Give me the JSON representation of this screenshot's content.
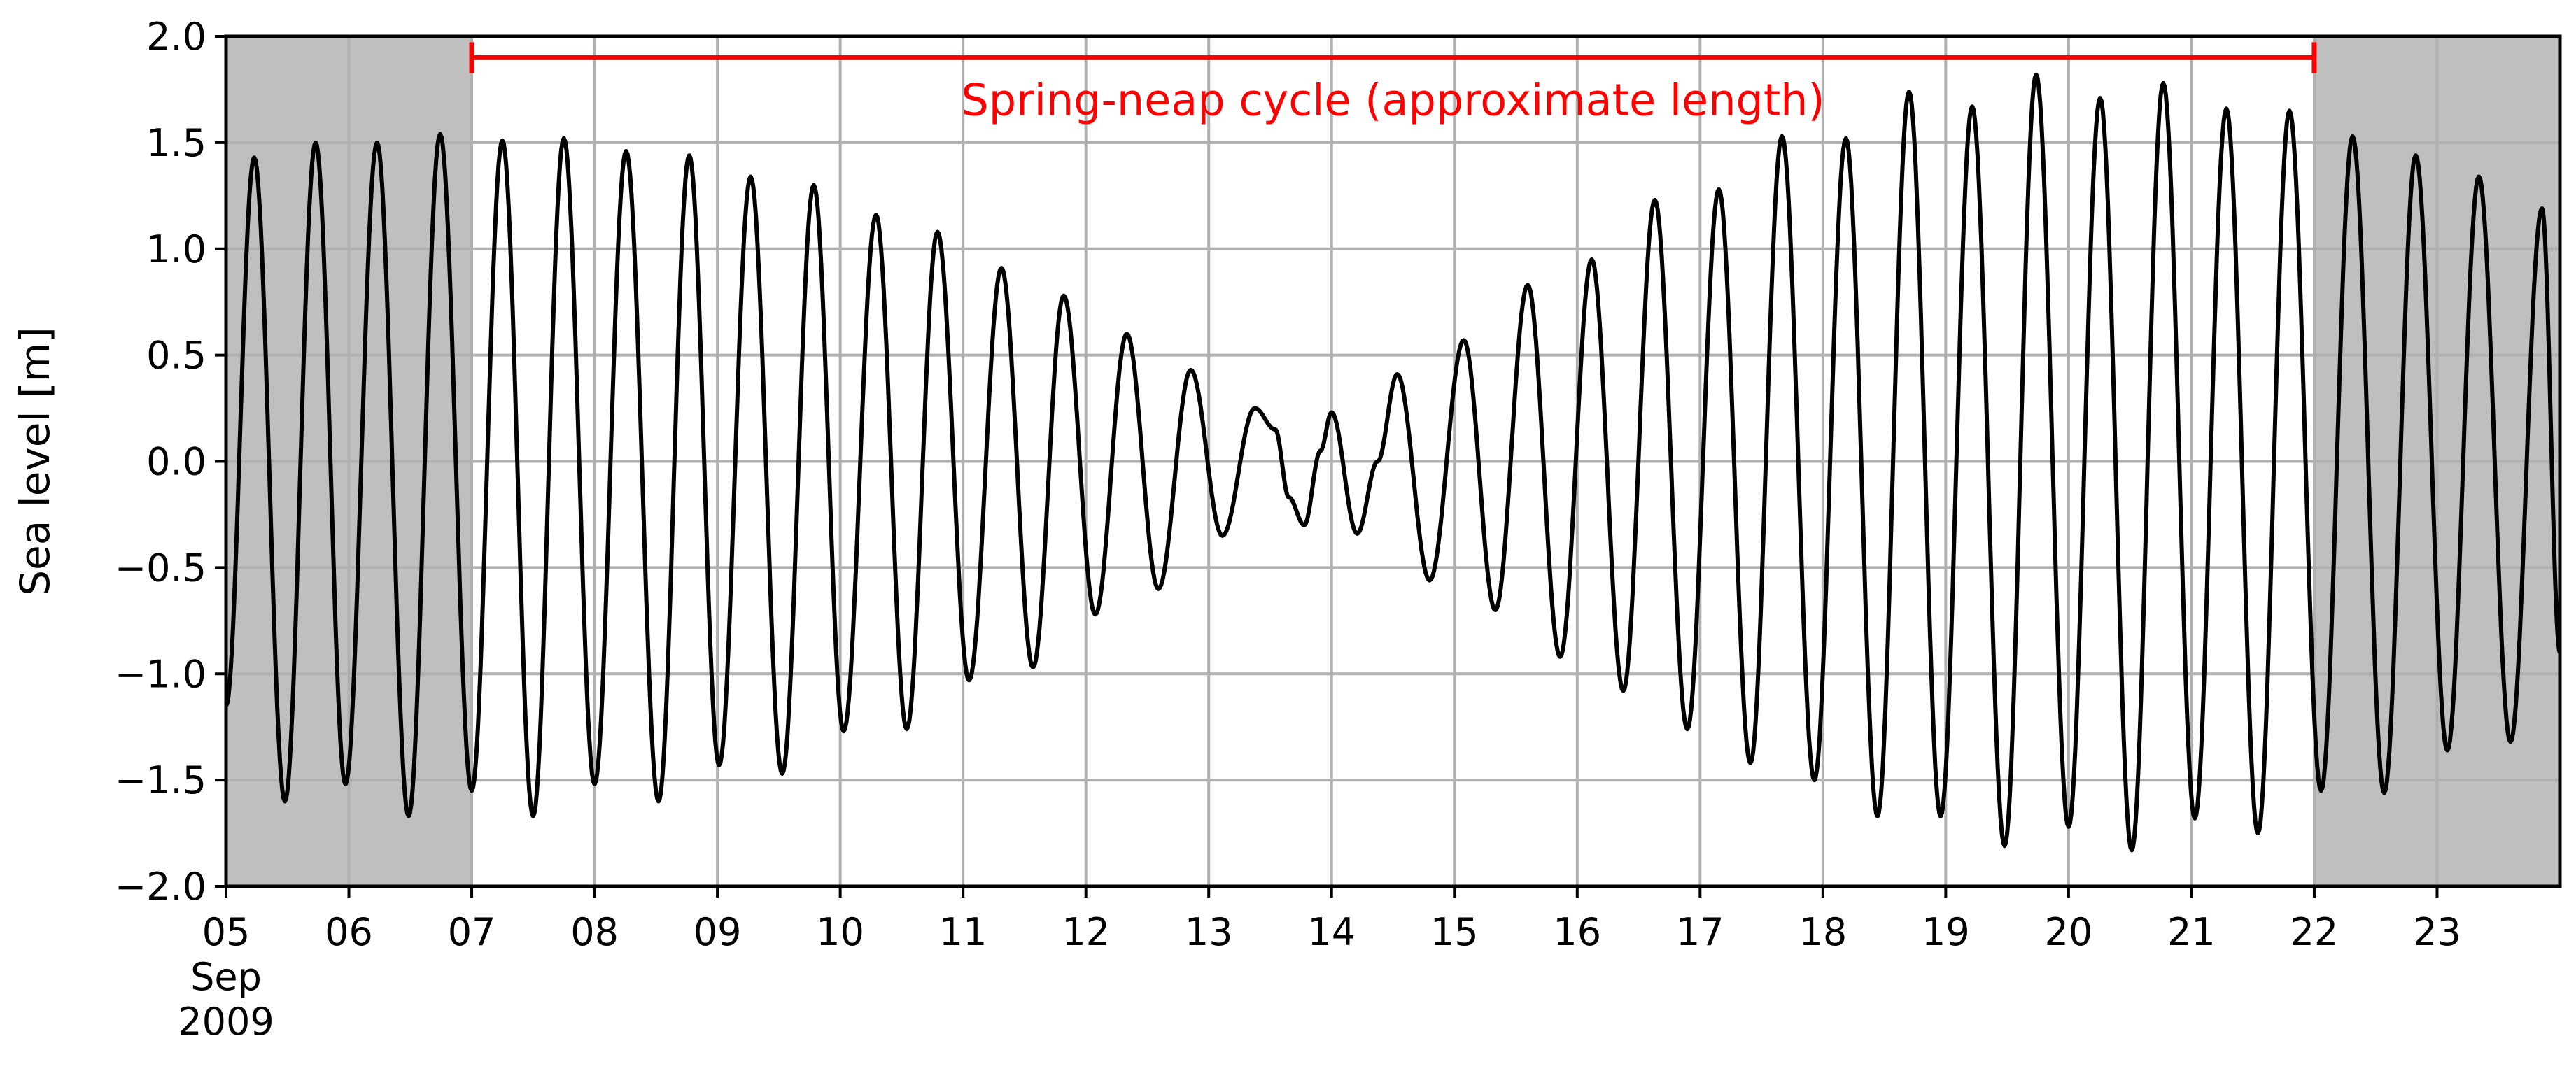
{
  "chart_data": {
    "type": "line",
    "title": "",
    "xlabel": "",
    "ylabel": "Sea level [m]",
    "xlim": [
      "2009-09-05",
      "2009-09-24"
    ],
    "ylim": [
      -2.0,
      2.0
    ],
    "grid": true,
    "legend": "none",
    "x_ticks": [
      {
        "date": "2009-09-05",
        "label": "05",
        "sublabels": [
          "Sep",
          "2009"
        ]
      },
      {
        "date": "2009-09-06",
        "label": "06"
      },
      {
        "date": "2009-09-07",
        "label": "07"
      },
      {
        "date": "2009-09-08",
        "label": "08"
      },
      {
        "date": "2009-09-09",
        "label": "09"
      },
      {
        "date": "2009-09-10",
        "label": "10"
      },
      {
        "date": "2009-09-11",
        "label": "11"
      },
      {
        "date": "2009-09-12",
        "label": "12"
      },
      {
        "date": "2009-09-13",
        "label": "13"
      },
      {
        "date": "2009-09-14",
        "label": "14"
      },
      {
        "date": "2009-09-15",
        "label": "15"
      },
      {
        "date": "2009-09-16",
        "label": "16"
      },
      {
        "date": "2009-09-17",
        "label": "17"
      },
      {
        "date": "2009-09-18",
        "label": "18"
      },
      {
        "date": "2009-09-19",
        "label": "19"
      },
      {
        "date": "2009-09-20",
        "label": "20"
      },
      {
        "date": "2009-09-21",
        "label": "21"
      },
      {
        "date": "2009-09-22",
        "label": "22"
      },
      {
        "date": "2009-09-23",
        "label": "23"
      }
    ],
    "y_ticks": [
      {
        "value": 2.0,
        "label": "2.0"
      },
      {
        "value": 1.5,
        "label": "1.5"
      },
      {
        "value": 1.0,
        "label": "1.0"
      },
      {
        "value": 0.5,
        "label": "0.5"
      },
      {
        "value": 0.0,
        "label": "0.0"
      },
      {
        "value": -0.5,
        "label": "−0.5"
      },
      {
        "value": -1.0,
        "label": "−1.0"
      },
      {
        "value": -1.5,
        "label": "−1.5"
      },
      {
        "value": -2.0,
        "label": "−2.0"
      }
    ],
    "shaded_regions": [
      {
        "start": "2009-09-05",
        "end": "2009-09-07",
        "color": "#bfbfbf"
      },
      {
        "start": "2009-09-22",
        "end": "2009-09-24",
        "color": "#bfbfbf"
      }
    ],
    "annotation": {
      "text": "Spring-neap cycle (approximate length)",
      "start": "2009-09-07",
      "end": "2009-09-22",
      "y": 1.9,
      "color": "#ff0000"
    },
    "series": [
      {
        "color": "#000000",
        "extrema": [
          {
            "x": "2009-09-05 00:00",
            "y": -1.15
          },
          {
            "x": "2009-09-05 05:30",
            "y": 1.43
          },
          {
            "x": "2009-09-05 11:30",
            "y": -1.6
          },
          {
            "x": "2009-09-05 17:30",
            "y": 1.5
          },
          {
            "x": "2009-09-05 23:20",
            "y": -1.52
          },
          {
            "x": "2009-09-06 05:30",
            "y": 1.5
          },
          {
            "x": "2009-09-06 11:40",
            "y": -1.67
          },
          {
            "x": "2009-09-06 17:50",
            "y": 1.54
          },
          {
            "x": "2009-09-07 00:00",
            "y": -1.55
          },
          {
            "x": "2009-09-07 06:00",
            "y": 1.51
          },
          {
            "x": "2009-09-07 12:00",
            "y": -1.67
          },
          {
            "x": "2009-09-07 18:00",
            "y": 1.52
          },
          {
            "x": "2009-09-08 00:00",
            "y": -1.52
          },
          {
            "x": "2009-09-08 06:10",
            "y": 1.46
          },
          {
            "x": "2009-09-08 12:30",
            "y": -1.6
          },
          {
            "x": "2009-09-08 18:30",
            "y": 1.44
          },
          {
            "x": "2009-09-09 00:20",
            "y": -1.43
          },
          {
            "x": "2009-09-09 06:30",
            "y": 1.34
          },
          {
            "x": "2009-09-09 12:40",
            "y": -1.47
          },
          {
            "x": "2009-09-09 18:50",
            "y": 1.3
          },
          {
            "x": "2009-09-10 00:40",
            "y": -1.27
          },
          {
            "x": "2009-09-10 07:00",
            "y": 1.16
          },
          {
            "x": "2009-09-10 13:00",
            "y": -1.26
          },
          {
            "x": "2009-09-10 19:00",
            "y": 1.08
          },
          {
            "x": "2009-09-11 01:10",
            "y": -1.03
          },
          {
            "x": "2009-09-11 07:30",
            "y": 0.91
          },
          {
            "x": "2009-09-11 13:40",
            "y": -0.97
          },
          {
            "x": "2009-09-11 19:40",
            "y": 0.78
          },
          {
            "x": "2009-09-12 01:50",
            "y": -0.72
          },
          {
            "x": "2009-09-12 08:00",
            "y": 0.6
          },
          {
            "x": "2009-09-12 14:10",
            "y": -0.6
          },
          {
            "x": "2009-09-12 20:30",
            "y": 0.43
          },
          {
            "x": "2009-09-13 02:40",
            "y": -0.35
          },
          {
            "x": "2009-09-13 09:00",
            "y": 0.25
          },
          {
            "x": "2009-09-13 13:00",
            "y": 0.15
          },
          {
            "x": "2009-09-13 15:40",
            "y": -0.17
          },
          {
            "x": "2009-09-13 18:40",
            "y": -0.3
          },
          {
            "x": "2009-09-13 21:50",
            "y": 0.05
          },
          {
            "x": "2009-09-14 00:00",
            "y": 0.23
          },
          {
            "x": "2009-09-14 05:00",
            "y": -0.34
          },
          {
            "x": "2009-09-14 09:00",
            "y": 0.0
          },
          {
            "x": "2009-09-14 12:50",
            "y": 0.41
          },
          {
            "x": "2009-09-14 19:10",
            "y": -0.56
          },
          {
            "x": "2009-09-15 01:50",
            "y": 0.57
          },
          {
            "x": "2009-09-15 08:00",
            "y": -0.7
          },
          {
            "x": "2009-09-15 14:20",
            "y": 0.83
          },
          {
            "x": "2009-09-15 20:40",
            "y": -0.92
          },
          {
            "x": "2009-09-16 02:50",
            "y": 0.95
          },
          {
            "x": "2009-09-16 09:00",
            "y": -1.08
          },
          {
            "x": "2009-09-16 15:10",
            "y": 1.23
          },
          {
            "x": "2009-09-16 21:30",
            "y": -1.26
          },
          {
            "x": "2009-09-17 03:40",
            "y": 1.28
          },
          {
            "x": "2009-09-17 09:50",
            "y": -1.42
          },
          {
            "x": "2009-09-17 16:00",
            "y": 1.53
          },
          {
            "x": "2009-09-17 22:20",
            "y": -1.5
          },
          {
            "x": "2009-09-18 04:30",
            "y": 1.52
          },
          {
            "x": "2009-09-18 10:40",
            "y": -1.67
          },
          {
            "x": "2009-09-18 16:50",
            "y": 1.74
          },
          {
            "x": "2009-09-18 23:00",
            "y": -1.67
          },
          {
            "x": "2009-09-19 05:10",
            "y": 1.67
          },
          {
            "x": "2009-09-19 11:30",
            "y": -1.81
          },
          {
            "x": "2009-09-19 17:40",
            "y": 1.82
          },
          {
            "x": "2009-09-20 00:00",
            "y": -1.72
          },
          {
            "x": "2009-09-20 06:10",
            "y": 1.71
          },
          {
            "x": "2009-09-20 12:20",
            "y": -1.83
          },
          {
            "x": "2009-09-20 18:30",
            "y": 1.78
          },
          {
            "x": "2009-09-21 00:40",
            "y": -1.68
          },
          {
            "x": "2009-09-21 06:50",
            "y": 1.66
          },
          {
            "x": "2009-09-21 13:00",
            "y": -1.75
          },
          {
            "x": "2009-09-21 19:10",
            "y": 1.65
          },
          {
            "x": "2009-09-22 01:20",
            "y": -1.55
          },
          {
            "x": "2009-09-22 07:30",
            "y": 1.53
          },
          {
            "x": "2009-09-22 13:40",
            "y": -1.56
          },
          {
            "x": "2009-09-22 19:50",
            "y": 1.44
          },
          {
            "x": "2009-09-23 02:00",
            "y": -1.36
          },
          {
            "x": "2009-09-23 08:10",
            "y": 1.34
          },
          {
            "x": "2009-09-23 14:20",
            "y": -1.32
          },
          {
            "x": "2009-09-23 20:30",
            "y": 1.19
          },
          {
            "x": "2009-09-24 00:00",
            "y": -0.9
          }
        ]
      }
    ]
  }
}
